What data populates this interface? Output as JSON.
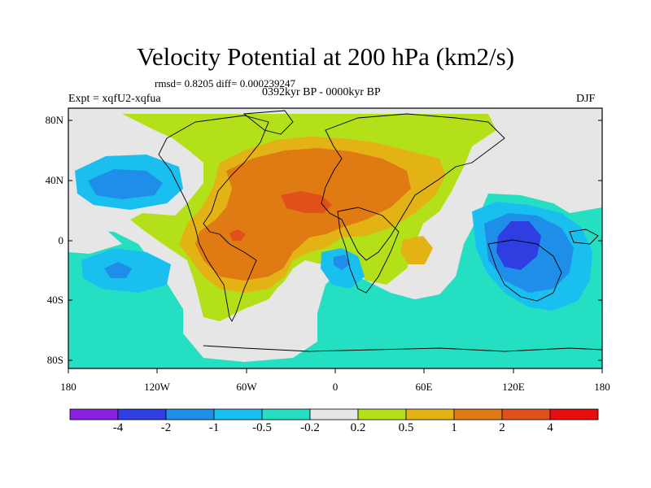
{
  "title": "Velocity Potential at 200 hPa (km2/s)",
  "stats": "rmsd= 0.8205  diff= 0.000239247",
  "experiment": "Expt = xqfU2-xqfua",
  "period": "0392kyr BP - 0000kyr BP",
  "season": "DJF",
  "lat_ticks": [
    "80N",
    "40N",
    "0",
    "40S",
    "80S"
  ],
  "lon_ticks": [
    "180",
    "120W",
    "60W",
    "0",
    "60E",
    "120E",
    "180"
  ],
  "colorbar": {
    "labels": [
      "-4",
      "-2",
      "-1",
      "-0.5",
      "-0.2",
      "0.2",
      "0.5",
      "1",
      "2",
      "4"
    ],
    "colors": [
      "#8a1fe0",
      "#2e3ee0",
      "#1f8ee8",
      "#19c0ef",
      "#25dfc2",
      "#e6e6e6",
      "#b4e01a",
      "#e3b214",
      "#e07a12",
      "#e0501a",
      "#e60e0e"
    ]
  }
}
